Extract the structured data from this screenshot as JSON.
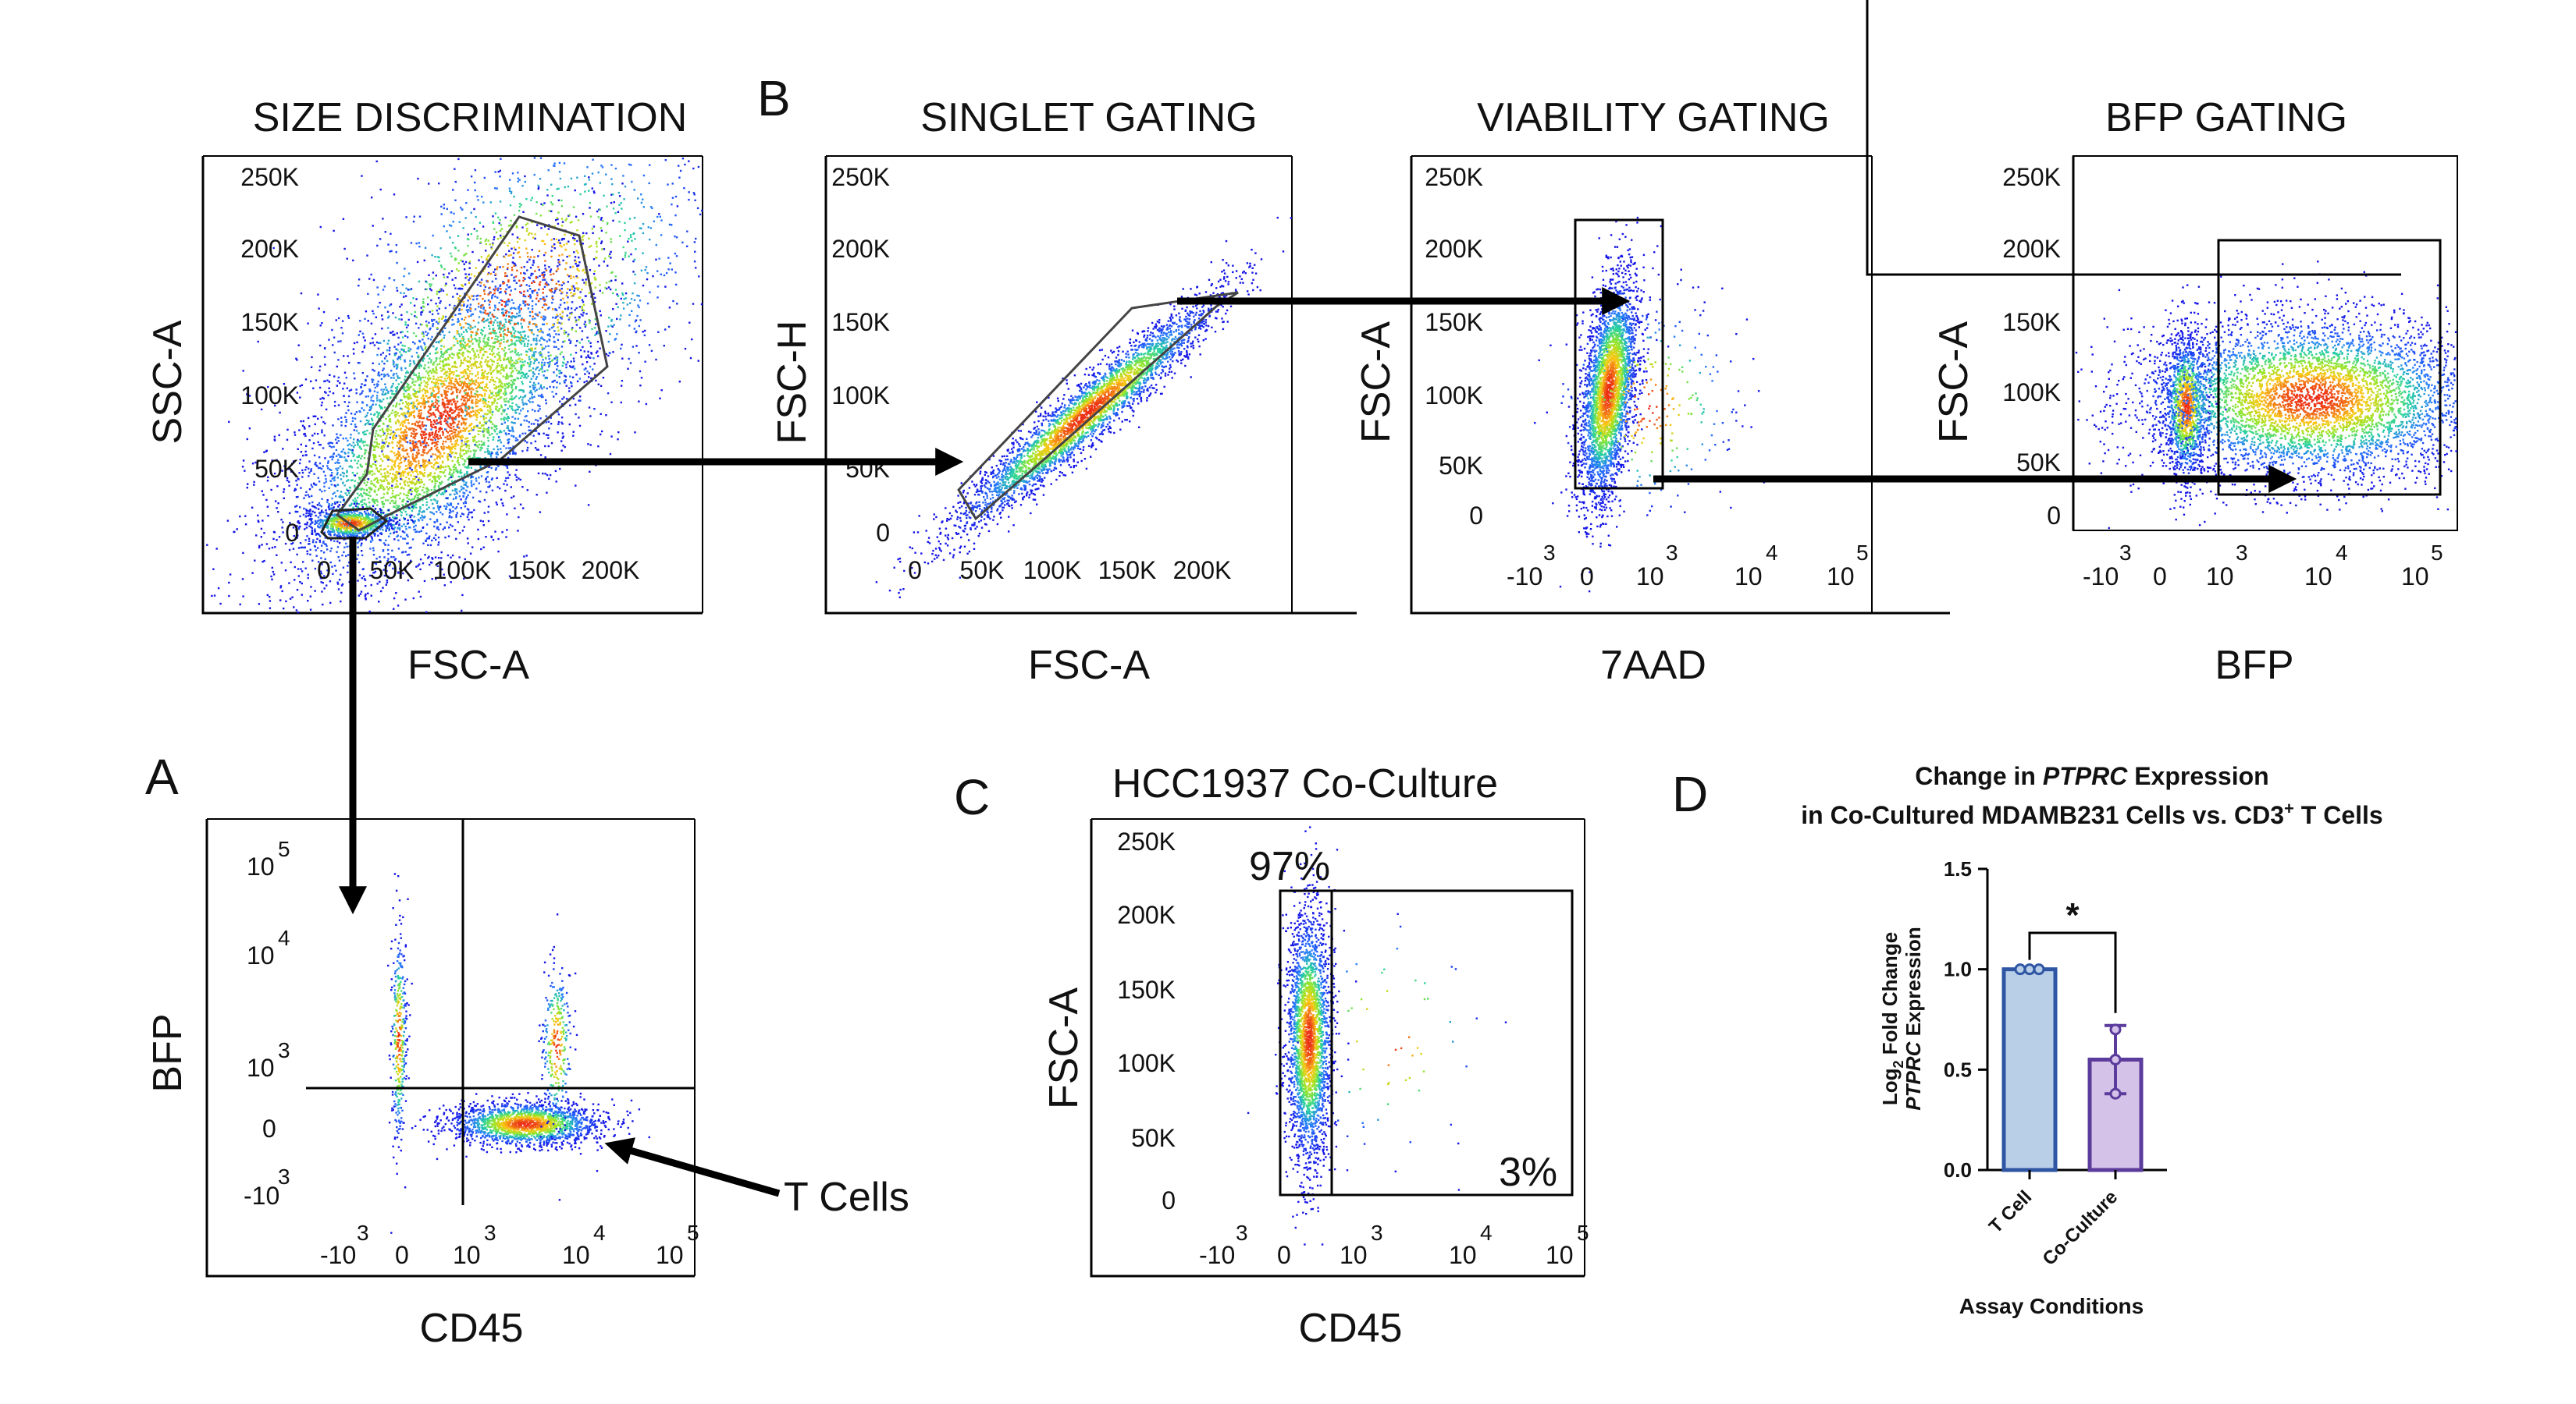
{
  "panel_letters": {
    "a": "A",
    "b": "B",
    "c": "C",
    "d": "D"
  },
  "flow_plots": {
    "size": {
      "title": "SIZE DISCRIMINATION",
      "xlabel": "FSC-A",
      "ylabel": "SSC-A",
      "yticks": [
        "250K",
        "200K",
        "150K",
        "100K",
        "50K",
        "0"
      ],
      "xticks": [
        "0",
        "50K",
        "100K",
        "150K",
        "200K"
      ]
    },
    "singlet": {
      "title": "SINGLET GATING",
      "xlabel": "FSC-A",
      "ylabel": "FSC-H",
      "yticks": [
        "250K",
        "200K",
        "150K",
        "100K",
        "50K",
        "0"
      ],
      "xticks": [
        "0",
        "50K",
        "100K",
        "150K",
        "200K"
      ]
    },
    "viability": {
      "title": "VIABILITY GATING",
      "xlabel": "7AAD",
      "ylabel": "FSC-A",
      "yticks": [
        "250K",
        "200K",
        "150K",
        "100K",
        "50K",
        "0"
      ]
    },
    "bfp": {
      "title": "BFP GATING",
      "xlabel": "BFP",
      "ylabel": "FSC-A",
      "yticks": [
        "250K",
        "200K",
        "150K",
        "100K",
        "50K",
        "0"
      ]
    },
    "cd45": {
      "xlabel": "CD45",
      "ylabel": "BFP",
      "annotation": "T Cells"
    },
    "coculture": {
      "title": "HCC1937 Co-Culture",
      "xlabel": "CD45",
      "ylabel": "FSC-A",
      "yticks": [
        "250K",
        "200K",
        "150K",
        "100K",
        "50K",
        "0"
      ],
      "gate_left_pct": "97%",
      "gate_right_pct": "3%"
    }
  },
  "log_axis": {
    "base": "10",
    "neg_exp": "3",
    "e3": "3",
    "e4": "4",
    "e5": "5",
    "zero": "0",
    "neg_prefix": "-10"
  },
  "chart_data": {
    "type": "bar",
    "title_prefix": "Change in ",
    "title_gene": "PTPRC",
    "title_suffix": " Expression",
    "subtitle_main": "in Co-Cultured MDAMB231 Cells vs. CD3",
    "subtitle_sup": "+",
    "subtitle_end": " T Cells",
    "xlabel": "Assay Conditions",
    "ylabel_line1_a": "Log",
    "ylabel_line1_sub": "2",
    "ylabel_line1_b": " Fold Change",
    "ylabel_line2_gene": "PTPRC",
    "ylabel_line2_rest": " Expression",
    "categories": [
      "T Cell",
      "Co-Culture"
    ],
    "values": [
      1.0,
      0.55
    ],
    "error_low": [
      1.0,
      0.38
    ],
    "error_high": [
      1.0,
      0.72
    ],
    "points": [
      [
        1.0,
        1.0,
        1.0
      ],
      [
        0.7,
        0.55,
        0.38
      ]
    ],
    "ylim": [
      0,
      1.5
    ],
    "yticks": [
      "0.0",
      "0.5",
      "1.0",
      "1.5"
    ],
    "significance": "*",
    "colors": {
      "fill": [
        "#b9cfe8",
        "#d4c2e8"
      ],
      "edge": [
        "#2f56a3",
        "#5b3b9c"
      ]
    }
  }
}
